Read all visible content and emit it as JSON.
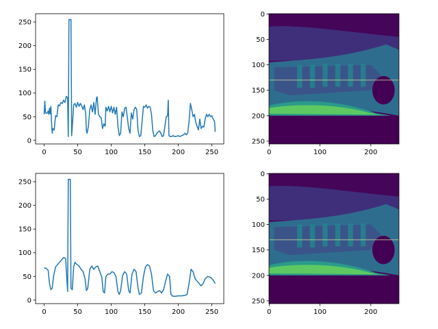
{
  "chart_data": [
    {
      "type": "line",
      "color": "#1f77b4",
      "x": [
        0,
        1,
        2,
        4,
        6,
        7,
        8,
        9,
        10,
        11,
        12,
        13,
        15,
        17,
        19,
        21,
        23,
        25,
        27,
        29,
        31,
        33,
        35,
        36,
        37,
        40,
        41,
        42,
        44,
        46,
        48,
        50,
        52,
        54,
        56,
        58,
        60,
        62,
        63,
        64,
        66,
        68,
        70,
        72,
        74,
        76,
        78,
        79,
        81,
        83,
        85,
        87,
        89,
        91,
        92,
        94,
        96,
        98,
        100,
        102,
        104,
        106,
        108,
        110,
        112,
        114,
        116,
        118,
        120,
        122,
        124,
        126,
        128,
        130,
        132,
        134,
        136,
        138,
        140,
        142,
        144,
        146,
        148,
        150,
        152,
        154,
        156,
        158,
        160,
        162,
        164,
        166,
        168,
        170,
        172,
        174,
        176,
        178,
        180,
        182,
        184,
        185,
        186,
        188,
        190,
        192,
        195,
        198,
        200,
        202,
        205,
        208,
        210,
        212,
        214,
        216,
        218,
        220,
        222,
        224,
        226,
        228,
        230,
        232,
        234,
        236,
        238,
        240,
        242,
        244,
        246,
        248,
        250,
        252,
        254,
        255
      ],
      "values": [
        55,
        83,
        58,
        57,
        62,
        55,
        68,
        56,
        72,
        40,
        15,
        25,
        22,
        52,
        50,
        75,
        73,
        80,
        78,
        85,
        80,
        93,
        90,
        8,
        255,
        255,
        10,
        30,
        75,
        78,
        70,
        80,
        72,
        78,
        73,
        65,
        75,
        55,
        20,
        15,
        30,
        65,
        75,
        60,
        80,
        55,
        90,
        92,
        55,
        50,
        48,
        25,
        35,
        30,
        70,
        62,
        72,
        60,
        72,
        58,
        70,
        55,
        70,
        30,
        10,
        15,
        60,
        50,
        68,
        70,
        48,
        25,
        15,
        58,
        45,
        65,
        70,
        65,
        20,
        8,
        10,
        40,
        72,
        70,
        75,
        68,
        72,
        70,
        55,
        20,
        8,
        10,
        15,
        18,
        20,
        15,
        8,
        10,
        30,
        50,
        52,
        85,
        10,
        8,
        8,
        10,
        8,
        9,
        10,
        8,
        10,
        12,
        15,
        12,
        15,
        40,
        78,
        65,
        50,
        55,
        38,
        30,
        22,
        45,
        25,
        30,
        28,
        45,
        55,
        50,
        55,
        50,
        52,
        45,
        40,
        18
      ],
      "xlim": [
        -12.75,
        267.75
      ],
      "xticks": [
        0,
        50,
        100,
        150,
        200,
        250
      ],
      "ylim": [
        -7.5,
        267.5
      ],
      "yticks": [
        0,
        50,
        100,
        150,
        200,
        250
      ]
    },
    {
      "type": "image",
      "hline": 130,
      "xlim": [
        -0.5,
        255.5
      ],
      "xticks": [
        0,
        100,
        200
      ],
      "ylim": [
        255.5,
        -0.5
      ],
      "yticks": [
        0,
        50,
        100,
        150,
        200,
        250
      ]
    },
    {
      "type": "line",
      "color": "#1f77b4",
      "x": [
        0,
        3,
        6,
        8,
        10,
        12,
        14,
        17,
        20,
        23,
        26,
        29,
        32,
        34,
        35,
        36,
        39,
        40,
        42,
        44,
        46,
        49,
        52,
        55,
        58,
        61,
        63,
        65,
        68,
        71,
        74,
        77,
        80,
        83,
        86,
        88,
        90,
        92,
        95,
        98,
        101,
        104,
        107,
        110,
        112,
        114,
        117,
        120,
        123,
        126,
        128,
        131,
        134,
        137,
        140,
        142,
        145,
        148,
        151,
        154,
        157,
        160,
        163,
        166,
        169,
        172,
        175,
        178,
        181,
        184,
        187,
        189,
        192,
        196,
        200,
        205,
        210,
        213,
        216,
        219,
        222,
        225,
        228,
        231,
        234,
        237,
        240,
        244,
        248,
        252,
        255
      ],
      "values": [
        68,
        67,
        63,
        35,
        22,
        25,
        50,
        70,
        75,
        80,
        85,
        90,
        88,
        40,
        18,
        255,
        255,
        25,
        22,
        70,
        80,
        75,
        72,
        65,
        60,
        45,
        20,
        25,
        65,
        72,
        65,
        70,
        72,
        60,
        48,
        18,
        15,
        50,
        55,
        55,
        60,
        58,
        50,
        18,
        12,
        20,
        52,
        60,
        55,
        20,
        15,
        55,
        65,
        60,
        25,
        12,
        15,
        50,
        70,
        75,
        72,
        55,
        20,
        15,
        18,
        20,
        15,
        22,
        40,
        55,
        50,
        12,
        8,
        8,
        9,
        9,
        10,
        12,
        35,
        65,
        60,
        45,
        40,
        35,
        30,
        35,
        45,
        50,
        48,
        42,
        35
      ],
      "xlim": [
        -12.75,
        267.75
      ],
      "xticks": [
        0,
        50,
        100,
        150,
        200,
        250
      ],
      "ylim": [
        -7.5,
        267.5
      ],
      "yticks": [
        0,
        50,
        100,
        150,
        200,
        250
      ]
    },
    {
      "type": "image",
      "hline": 130,
      "xlim": [
        -0.5,
        255.5
      ],
      "xticks": [
        0,
        100,
        200
      ],
      "ylim": [
        255.5,
        -0.5
      ],
      "yticks": [
        0,
        50,
        100,
        150,
        200,
        250
      ]
    }
  ]
}
